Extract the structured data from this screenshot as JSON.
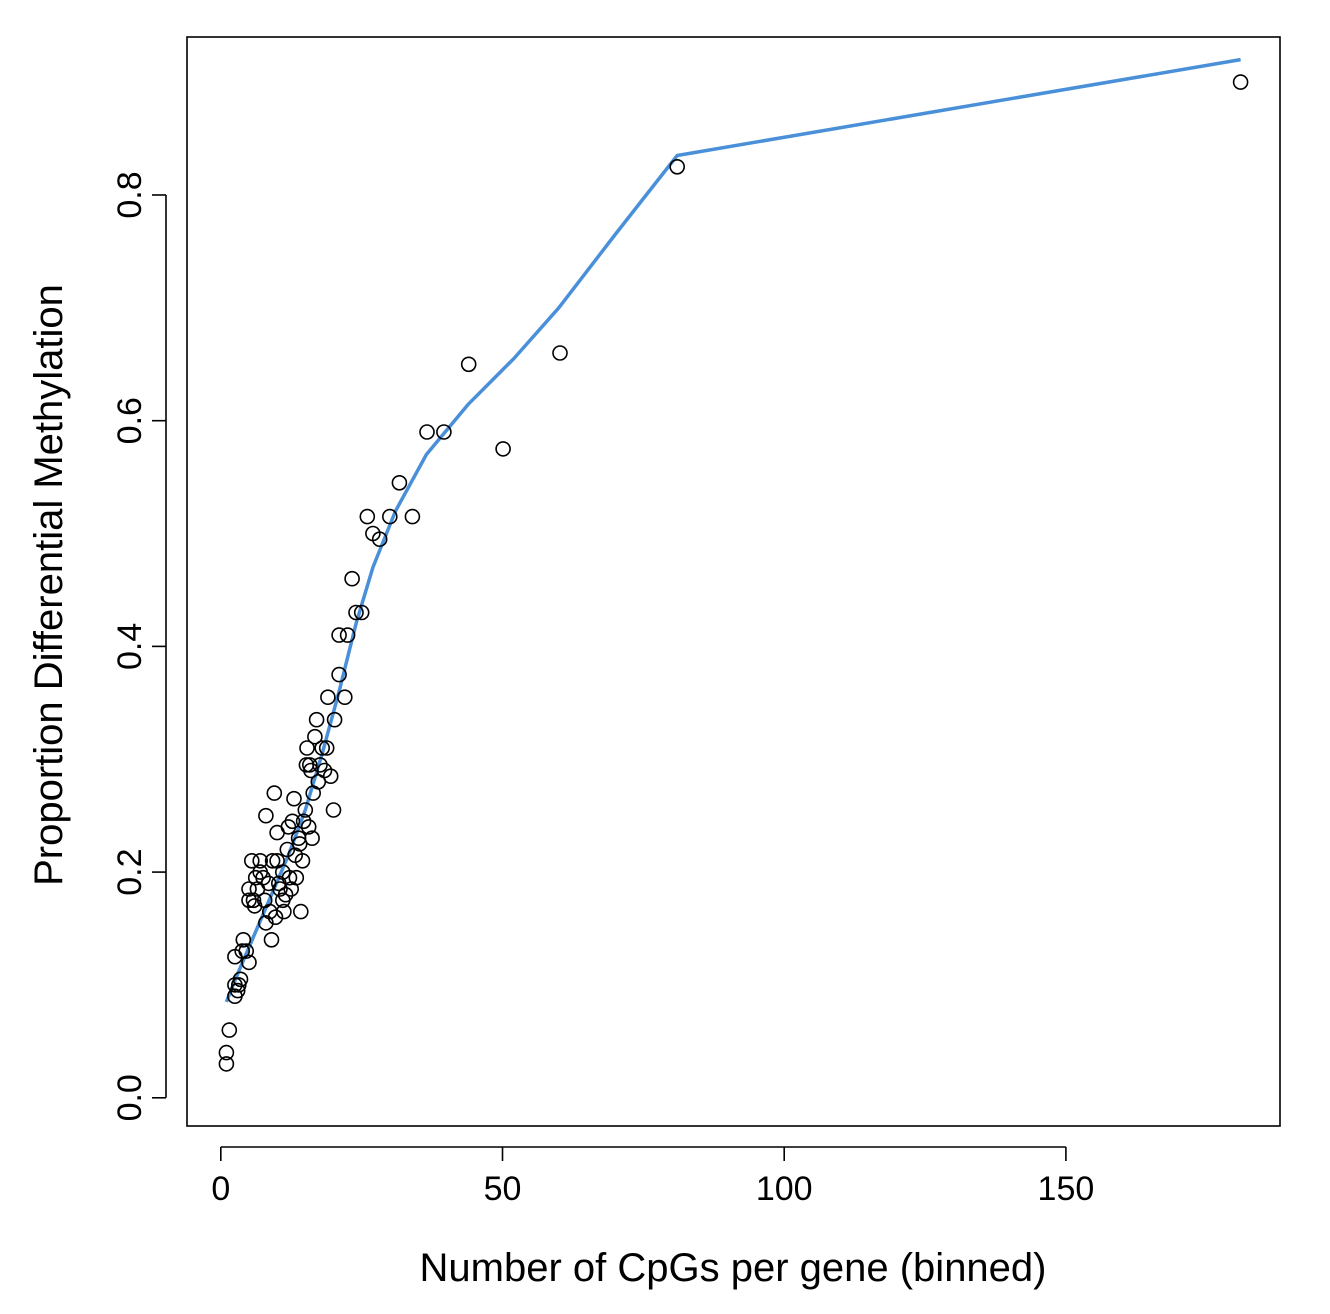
{
  "chart_data": {
    "type": "scatter",
    "title": "",
    "xlabel": "Number of CpGs per gene (binned)",
    "ylabel": "Proportion Differential Methylation",
    "xlim": [
      -6,
      188
    ],
    "ylim": [
      -0.025,
      0.94
    ],
    "x_ticks": [
      0,
      50,
      100,
      150
    ],
    "x_tick_labels": [
      "0",
      "50",
      "100",
      "150"
    ],
    "y_ticks": [
      0.0,
      0.2,
      0.4,
      0.6,
      0.8
    ],
    "y_tick_labels": [
      "0.0",
      "0.2",
      "0.4",
      "0.6",
      "0.8"
    ],
    "grid": false,
    "legend": "none",
    "point_color": "#000000",
    "line_color": "#4a90d9",
    "points": [
      [
        1,
        0.04
      ],
      [
        1,
        0.03
      ],
      [
        1.5,
        0.06
      ],
      [
        2.5,
        0.09
      ],
      [
        2.5,
        0.1
      ],
      [
        2.5,
        0.125
      ],
      [
        3,
        0.095
      ],
      [
        3.2,
        0.1
      ],
      [
        3.5,
        0.105
      ],
      [
        3.8,
        0.13
      ],
      [
        4,
        0.14
      ],
      [
        4.5,
        0.13
      ],
      [
        5,
        0.12
      ],
      [
        5,
        0.175
      ],
      [
        5,
        0.185
      ],
      [
        5.5,
        0.21
      ],
      [
        5.8,
        0.175
      ],
      [
        6,
        0.17
      ],
      [
        6.2,
        0.195
      ],
      [
        6.5,
        0.185
      ],
      [
        7,
        0.21
      ],
      [
        7,
        0.2
      ],
      [
        7.5,
        0.195
      ],
      [
        7.8,
        0.175
      ],
      [
        8,
        0.25
      ],
      [
        8,
        0.155
      ],
      [
        8.5,
        0.19
      ],
      [
        8.7,
        0.165
      ],
      [
        9,
        0.14
      ],
      [
        9.2,
        0.21
      ],
      [
        9.5,
        0.27
      ],
      [
        9.7,
        0.16
      ],
      [
        10,
        0.235
      ],
      [
        10,
        0.21
      ],
      [
        10.3,
        0.19
      ],
      [
        10.5,
        0.185
      ],
      [
        11,
        0.2
      ],
      [
        11,
        0.175
      ],
      [
        11.2,
        0.165
      ],
      [
        11.5,
        0.18
      ],
      [
        11.8,
        0.22
      ],
      [
        12,
        0.24
      ],
      [
        12.2,
        0.195
      ],
      [
        12.5,
        0.185
      ],
      [
        12.7,
        0.245
      ],
      [
        13,
        0.265
      ],
      [
        13.2,
        0.215
      ],
      [
        13.4,
        0.195
      ],
      [
        13.8,
        0.23
      ],
      [
        14,
        0.225
      ],
      [
        14.2,
        0.165
      ],
      [
        14.5,
        0.21
      ],
      [
        14.7,
        0.245
      ],
      [
        15,
        0.255
      ],
      [
        15.2,
        0.295
      ],
      [
        15.3,
        0.31
      ],
      [
        15.6,
        0.24
      ],
      [
        15.8,
        0.295
      ],
      [
        16,
        0.29
      ],
      [
        16.2,
        0.23
      ],
      [
        16.4,
        0.27
      ],
      [
        16.7,
        0.32
      ],
      [
        17,
        0.335
      ],
      [
        17.3,
        0.28
      ],
      [
        17.6,
        0.295
      ],
      [
        18,
        0.31
      ],
      [
        18.4,
        0.29
      ],
      [
        18.8,
        0.31
      ],
      [
        19,
        0.355
      ],
      [
        19.5,
        0.285
      ],
      [
        20,
        0.255
      ],
      [
        20.2,
        0.335
      ],
      [
        21,
        0.375
      ],
      [
        21,
        0.41
      ],
      [
        22,
        0.355
      ],
      [
        22.5,
        0.41
      ],
      [
        23.3,
        0.46
      ],
      [
        24,
        0.43
      ],
      [
        25,
        0.43
      ],
      [
        26,
        0.515
      ],
      [
        27,
        0.5
      ],
      [
        28.2,
        0.495
      ],
      [
        30,
        0.515
      ],
      [
        31.7,
        0.545
      ],
      [
        34,
        0.515
      ],
      [
        36.6,
        0.59
      ],
      [
        39.6,
        0.59
      ],
      [
        44,
        0.65
      ],
      [
        50.1,
        0.575
      ],
      [
        60.2,
        0.66
      ],
      [
        81,
        0.825
      ],
      [
        181,
        0.9
      ]
    ],
    "fit_line": [
      [
        1,
        0.085
      ],
      [
        3,
        0.11
      ],
      [
        6,
        0.145
      ],
      [
        9,
        0.18
      ],
      [
        12,
        0.215
      ],
      [
        15,
        0.255
      ],
      [
        18,
        0.305
      ],
      [
        21,
        0.36
      ],
      [
        24,
        0.42
      ],
      [
        27,
        0.47
      ],
      [
        31,
        0.52
      ],
      [
        36.5,
        0.57
      ],
      [
        44,
        0.615
      ],
      [
        52,
        0.655
      ],
      [
        60,
        0.7
      ],
      [
        70,
        0.765
      ],
      [
        81,
        0.835
      ],
      [
        181,
        0.92
      ]
    ]
  }
}
